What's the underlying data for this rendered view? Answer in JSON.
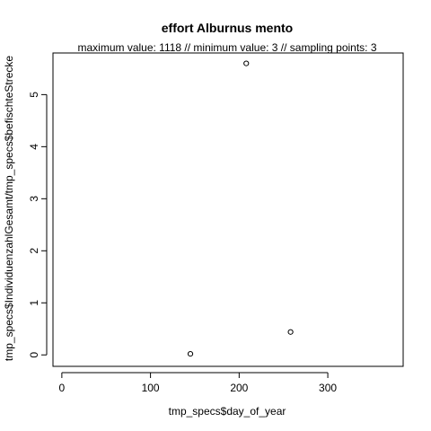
{
  "chart_data": {
    "type": "scatter",
    "title": "effort Alburnus mento",
    "subtitle": "maximum value: 1118  //  minimum value: 3  // sampling points: 3",
    "xlabel": "tmp_specs$day_of_year",
    "ylabel": "tmp_specs$IndividuenzahlGesamt/tmp_specs$befischteStrecke",
    "x_ticks": [
      "0",
      "100",
      "200",
      "300"
    ],
    "y_ticks": [
      "0",
      "1",
      "2",
      "3",
      "4",
      "5"
    ],
    "xlim": [
      -10,
      385
    ],
    "ylim": [
      -0.22,
      5.8
    ],
    "points": [
      {
        "x": 145,
        "y": 0.02
      },
      {
        "x": 208,
        "y": 5.6
      },
      {
        "x": 258,
        "y": 0.44
      }
    ],
    "grid": false,
    "marker": "open-circle"
  }
}
